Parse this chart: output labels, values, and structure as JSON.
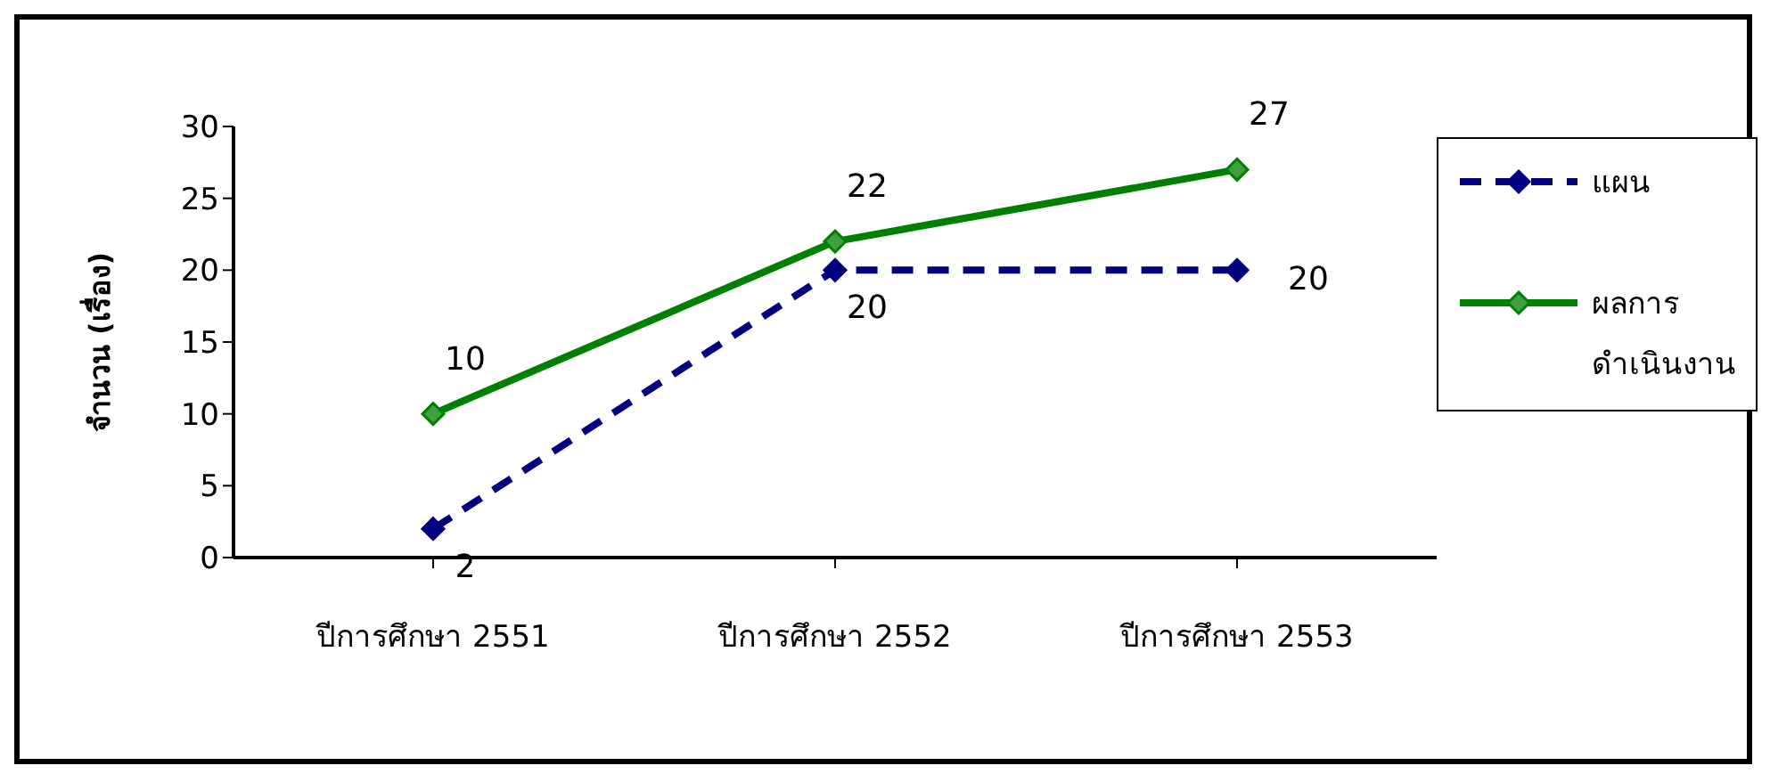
{
  "chart_data": {
    "type": "line",
    "ylabel": "จำนวน (เรื่อง)",
    "categories": [
      "ปีการศึกษา 2551",
      "ปีการศึกษา 2552",
      "ปีการศึกษา 2553"
    ],
    "series": [
      {
        "name": "แผน",
        "color": "#000080",
        "values": [
          2,
          20,
          20
        ],
        "line_style": "dashed"
      },
      {
        "name": "ผลการดำเนินงาน",
        "color": "#008000",
        "values": [
          10,
          22,
          27
        ],
        "line_style": "solid"
      }
    ],
    "ylim": [
      0,
      30
    ],
    "yticks": [
      0,
      5,
      10,
      15,
      20,
      25,
      30
    ],
    "grid": false,
    "legend": "right",
    "marker": "diamond",
    "data_labels": true
  }
}
